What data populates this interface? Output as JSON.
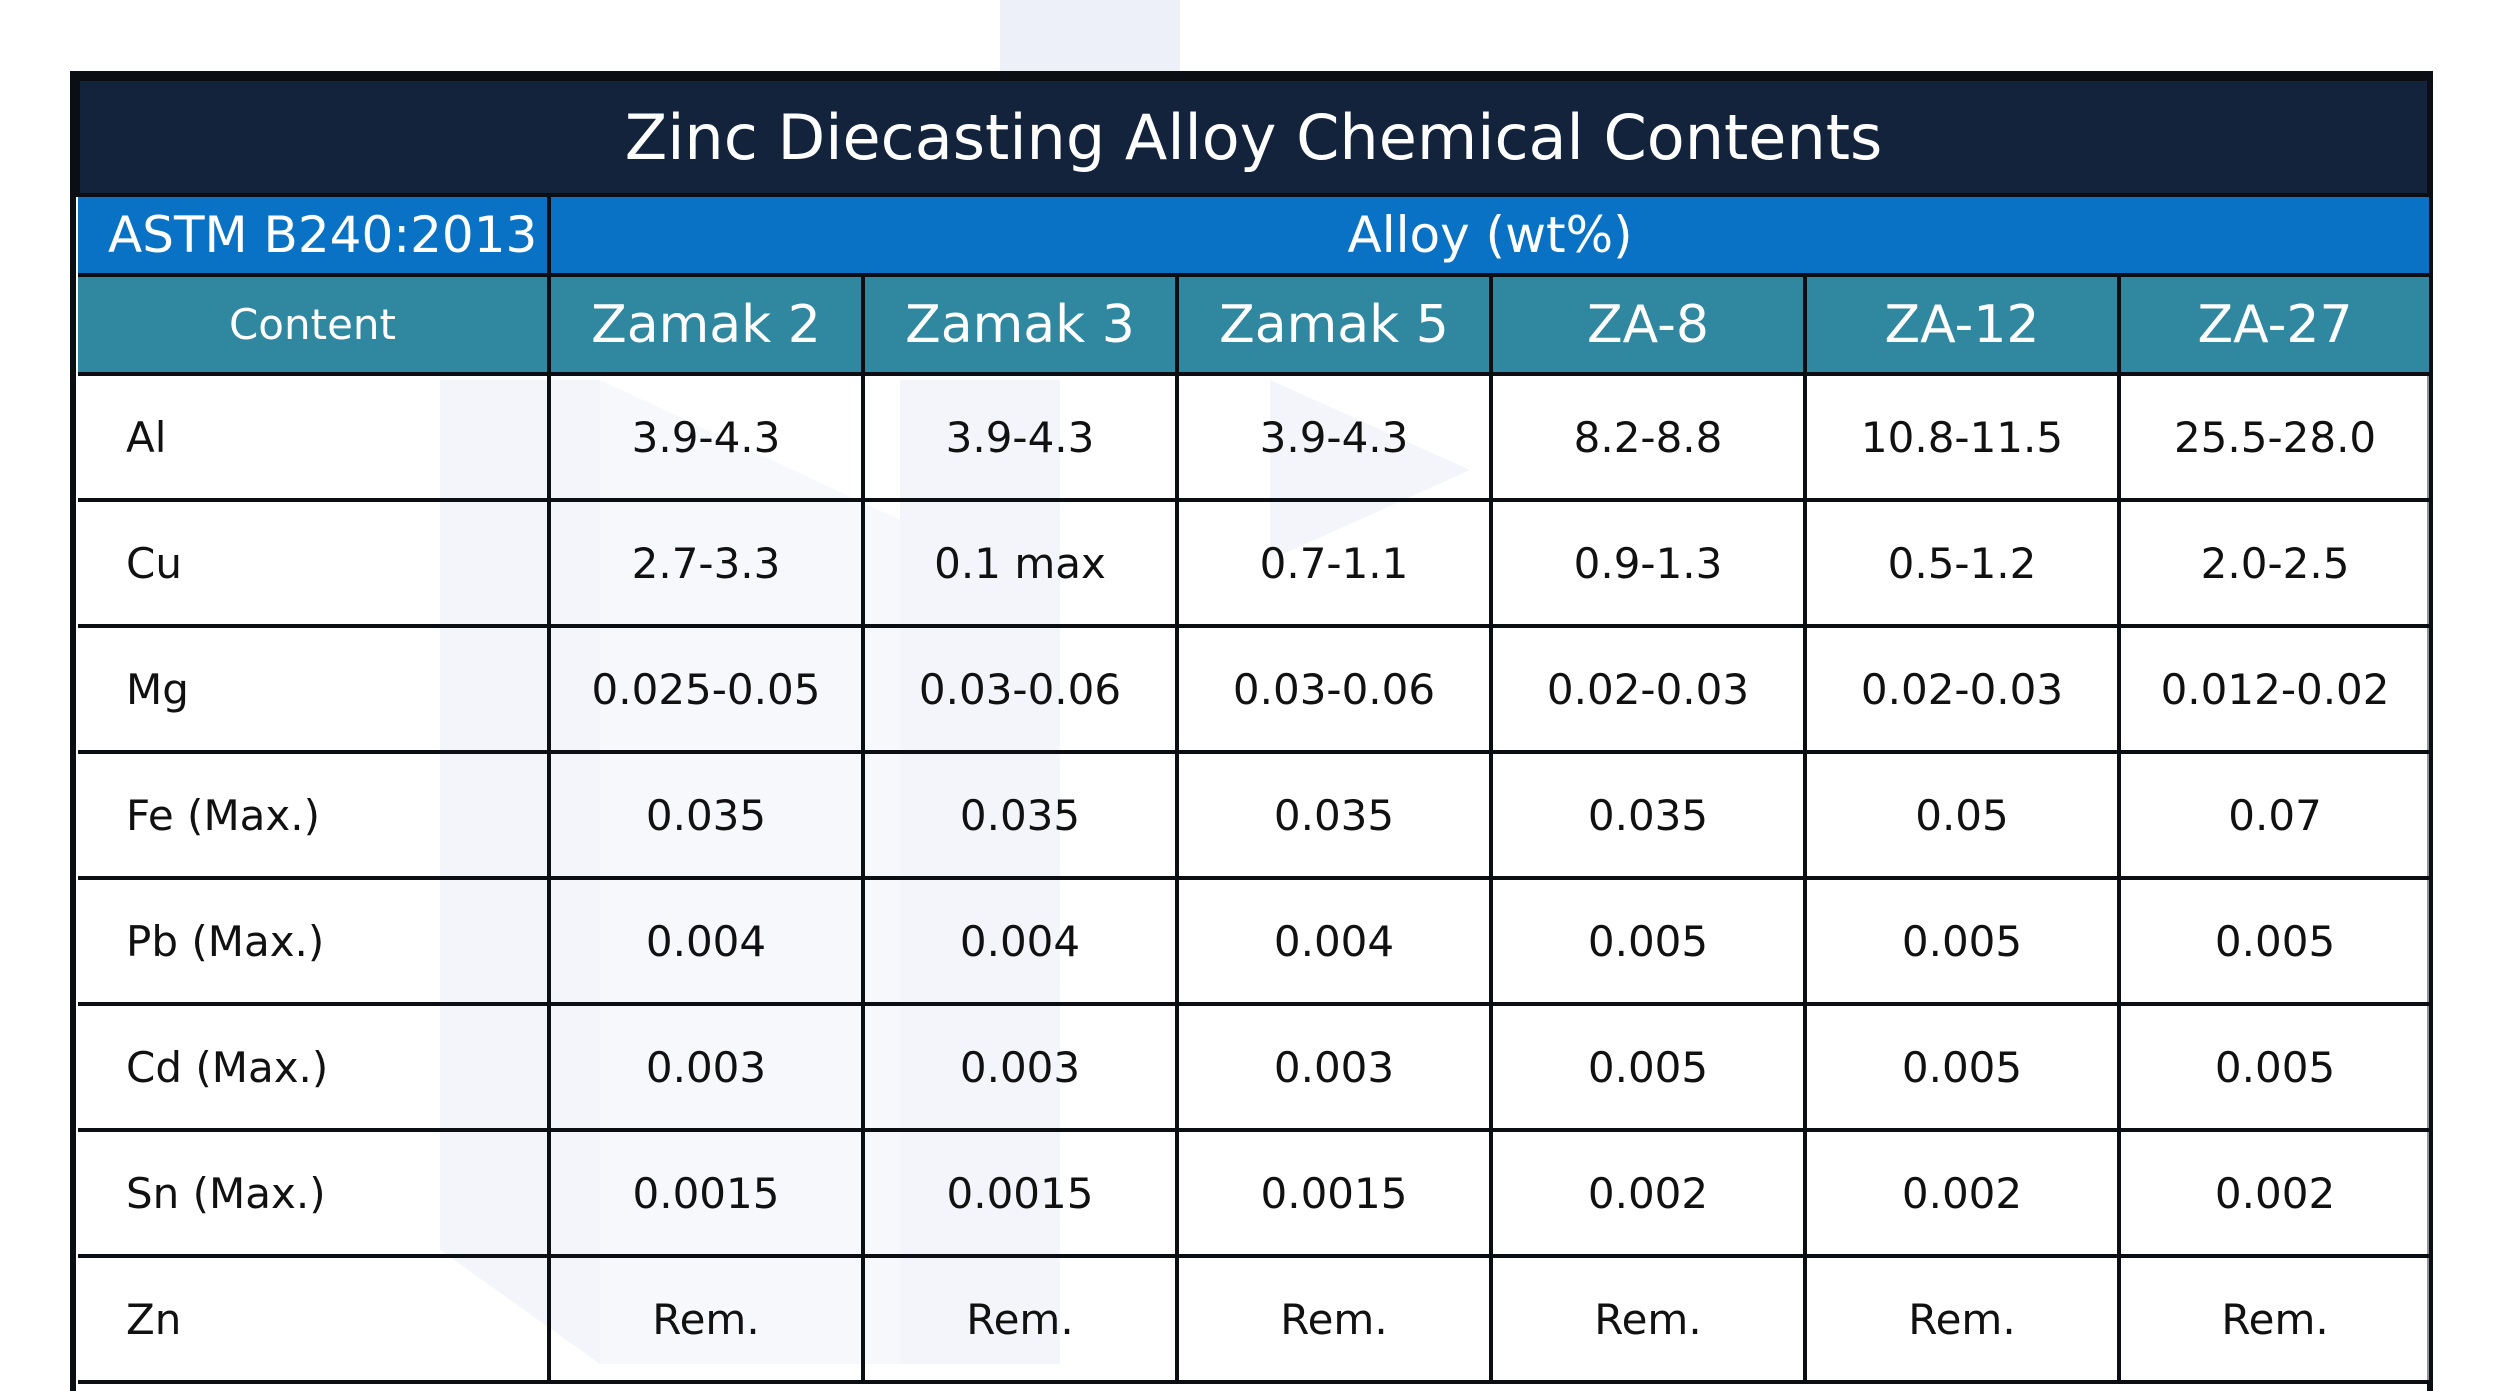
{
  "title": "Zinc Diecasting Alloy Chemical Contents",
  "standard": "ASTM B240:2013",
  "alloy_group_label": "Alloy (wt%)",
  "content_header": "Content",
  "alloys": [
    "Zamak 2",
    "Zamak 3",
    "Zamak 5",
    "ZA-8",
    "ZA-12",
    "ZA-27"
  ],
  "rows": [
    {
      "element": "Al",
      "values": [
        "3.9-4.3",
        "3.9-4.3",
        "3.9-4.3",
        "8.2-8.8",
        "10.8-11.5",
        "25.5-28.0"
      ]
    },
    {
      "element": "Cu",
      "values": [
        "2.7-3.3",
        "0.1 max",
        "0.7-1.1",
        "0.9-1.3",
        "0.5-1.2",
        "2.0-2.5"
      ]
    },
    {
      "element": "Mg",
      "values": [
        "0.025-0.05",
        "0.03-0.06",
        "0.03-0.06",
        "0.02-0.03",
        "0.02-0.03",
        "0.012-0.02"
      ]
    },
    {
      "element": "Fe (Max.)",
      "values": [
        "0.035",
        "0.035",
        "0.035",
        "0.035",
        "0.05",
        "0.07"
      ]
    },
    {
      "element": "Pb (Max.)",
      "values": [
        "0.004",
        "0.004",
        "0.004",
        "0.005",
        "0.005",
        "0.005"
      ]
    },
    {
      "element": "Cd (Max.)",
      "values": [
        "0.003",
        "0.003",
        "0.003",
        "0.005",
        "0.005",
        "0.005"
      ]
    },
    {
      "element": "Sn (Max.)",
      "values": [
        "0.0015",
        "0.0015",
        "0.0015",
        "0.002",
        "0.002",
        "0.002"
      ]
    },
    {
      "element": "Zn",
      "values": [
        "Rem.",
        "Rem.",
        "Rem.",
        "Rem.",
        "Rem.",
        "Rem."
      ]
    }
  ],
  "colors": {
    "title_bg": "#14233c",
    "standard_bg": "#0a72c4",
    "header_bg": "#2f87a0",
    "watermark": "#e3e7f5"
  }
}
